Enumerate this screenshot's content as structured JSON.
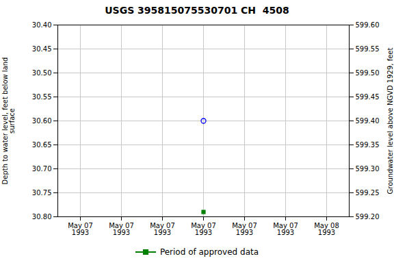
{
  "chart_data": {
    "type": "scatter",
    "title": "USGS 395815075530701 CH  4508",
    "y_label": "Depth to water level, feet below land\nsurface",
    "y2_label": "Groundwater level above NGVD 1929, feet",
    "categories": [
      "May 07\n1993",
      "May 07\n1993",
      "May 07\n1993",
      "May 07\n1993",
      "May 07\n1993",
      "May 07\n1993",
      "May 08\n1993"
    ],
    "series": [
      {
        "color": "blue",
        "marker": "circle",
        "values": [
          null,
          null,
          null,
          30.6,
          null,
          null,
          null
        ]
      },
      {
        "name": "Period of approved data",
        "color": "#008000",
        "marker": "square",
        "values": [
          null,
          null,
          null,
          30.79,
          null,
          null,
          null
        ]
      }
    ],
    "ylim": [
      30.8,
      30.4
    ],
    "yticks": [
      {
        "value": 30.4,
        "label": "30.40"
      },
      30.45,
      {
        "value": 30.5,
        "label": "30.50"
      },
      30.55,
      {
        "value": 30.6,
        "label": "30.60"
      },
      30.65,
      {
        "value": 30.7,
        "label": "30.70"
      },
      30.75,
      {
        "value": 30.8,
        "label": "30.80"
      }
    ],
    "y2lim": [
      599.2,
      599.6
    ],
    "y2ticks": [
      {
        "value": 599.6,
        "label": "599.60"
      },
      599.55,
      {
        "value": 599.5,
        "label": "599.50"
      },
      599.45,
      {
        "value": 599.4,
        "label": "599.40"
      },
      599.35,
      {
        "value": 599.3,
        "label": "599.30"
      },
      599.25,
      {
        "value": 599.2,
        "label": "599.20"
      }
    ],
    "grid": true,
    "legend": "bottom"
  }
}
